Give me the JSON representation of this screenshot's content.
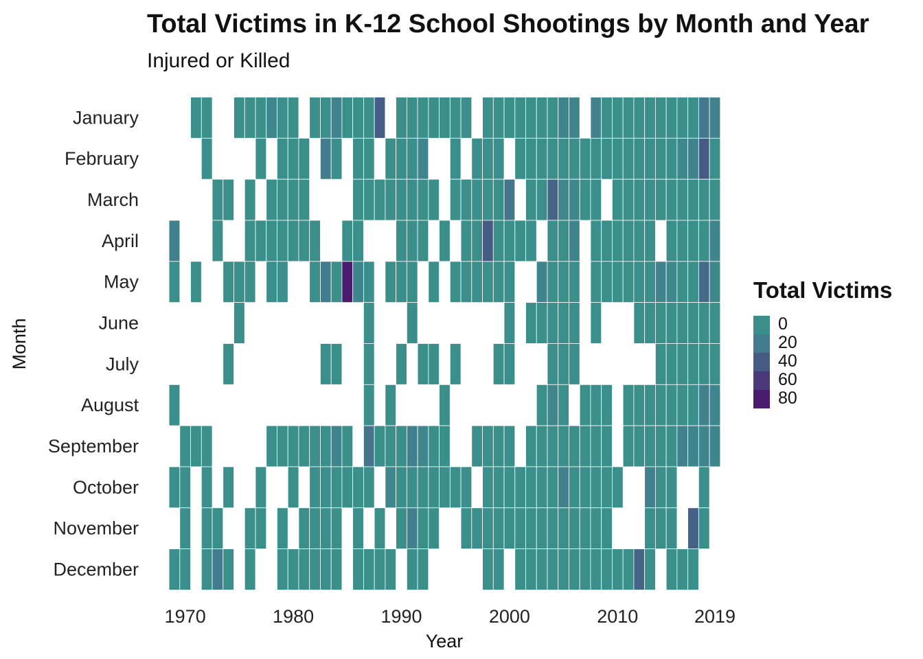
{
  "chart_data": {
    "type": "heatmap",
    "title": "Total Victims in K-12 School Shootings by Month and Year",
    "subtitle": "Injured or Killed",
    "xlabel": "Year",
    "ylabel": "Month",
    "x_ticks": [
      1970,
      1980,
      1990,
      2000,
      2010,
      2019
    ],
    "xlim": [
      1970,
      2019
    ],
    "grid": false,
    "months": [
      "January",
      "February",
      "March",
      "April",
      "May",
      "June",
      "July",
      "August",
      "September",
      "October",
      "November",
      "December"
    ],
    "legend": {
      "title": "Total Victims",
      "placement": "right",
      "labels": [
        "0",
        "20",
        "40",
        "60",
        "80"
      ],
      "colors": [
        "#3b8f8b",
        "#437b8e",
        "#465b84",
        "#4a3a7c",
        "#4b1b6e"
      ]
    },
    "base_color": "#3b8f8b",
    "cells": {
      "January": {
        "years": [
          1971,
          1972,
          1975,
          1976,
          1977,
          1978,
          1979,
          1980,
          1982,
          1983,
          1984,
          1985,
          1986,
          1987,
          1988,
          1990,
          1991,
          1992,
          1993,
          1994,
          1995,
          1996,
          1998,
          1999,
          2000,
          2001,
          2002,
          2003,
          2004,
          2005,
          2006,
          2008,
          2009,
          2010,
          2011,
          2012,
          2013,
          2014,
          2015,
          2016,
          2017,
          2018,
          2019
        ],
        "high": {
          "1978": 8,
          "1984": 12,
          "1988": 38,
          "2005": 10,
          "2006": 10,
          "2008": 14,
          "2018": 22,
          "2019": 14
        }
      },
      "February": {
        "years": [
          1972,
          1977,
          1979,
          1980,
          1981,
          1983,
          1984,
          1986,
          1987,
          1989,
          1990,
          1991,
          1992,
          1995,
          1997,
          1998,
          1999,
          2001,
          2002,
          2003,
          2004,
          2005,
          2006,
          2007,
          2008,
          2009,
          2010,
          2011,
          2012,
          2013,
          2014,
          2015,
          2016,
          2017,
          2018,
          2019
        ],
        "high": {
          "1983": 18,
          "1992": 10,
          "2016": 8,
          "2017": 12,
          "2018": 40
        }
      },
      "March": {
        "years": [
          1973,
          1974,
          1976,
          1978,
          1979,
          1980,
          1981,
          1986,
          1987,
          1988,
          1989,
          1990,
          1991,
          1992,
          1993,
          1995,
          1996,
          1997,
          1998,
          1999,
          2000,
          2002,
          2003,
          2004,
          2005,
          2006,
          2007,
          2008,
          2010,
          2011,
          2012,
          2013,
          2014,
          2015,
          2016,
          2017,
          2018,
          2019
        ],
        "high": {
          "2000": 24,
          "2004": 34,
          "2005": 8,
          "2006": 8
        }
      },
      "April": {
        "years": [
          1969,
          1973,
          1976,
          1977,
          1978,
          1979,
          1980,
          1981,
          1982,
          1985,
          1986,
          1990,
          1991,
          1992,
          1994,
          1996,
          1997,
          1998,
          1999,
          2000,
          2001,
          2002,
          2004,
          2005,
          2006,
          2008,
          2009,
          2010,
          2011,
          2012,
          2013,
          2015,
          2016,
          2017,
          2018,
          2019
        ],
        "high": {
          "1969": 14,
          "1998": 40,
          "2006": 10,
          "2019": 10
        }
      },
      "May": {
        "years": [
          1969,
          1971,
          1974,
          1975,
          1976,
          1978,
          1979,
          1982,
          1983,
          1984,
          1985,
          1986,
          1987,
          1989,
          1990,
          1991,
          1993,
          1995,
          1996,
          1997,
          1998,
          1999,
          2000,
          2003,
          2004,
          2005,
          2006,
          2008,
          2009,
          2010,
          2011,
          2012,
          2013,
          2014,
          2015,
          2016,
          2017,
          2018,
          2019
        ],
        "high": {
          "1983": 20,
          "1985": 86,
          "1986": 10,
          "2003": 10,
          "2014": 12,
          "2015": 8,
          "2018": 30,
          "2019": 8
        }
      },
      "June": {
        "years": [
          1975,
          1987,
          1991,
          2000,
          2002,
          2003,
          2004,
          2005,
          2006,
          2008,
          2012,
          2013,
          2014,
          2015,
          2016,
          2017,
          2018,
          2019
        ],
        "high": {}
      },
      "July": {
        "years": [
          1974,
          1983,
          1984,
          1987,
          1990,
          1992,
          1993,
          1995,
          1999,
          2000,
          2004,
          2005,
          2006,
          2014,
          2015,
          2016,
          2017,
          2018,
          2019
        ],
        "high": {}
      },
      "August": {
        "years": [
          1969,
          1987,
          1989,
          1994,
          2003,
          2004,
          2005,
          2007,
          2008,
          2009,
          2011,
          2012,
          2013,
          2014,
          2015,
          2016,
          2017,
          2018,
          2019
        ],
        "high": {
          "2004": 8,
          "2018": 14,
          "2019": 10
        }
      },
      "September": {
        "years": [
          1970,
          1971,
          1972,
          1978,
          1979,
          1980,
          1981,
          1982,
          1983,
          1984,
          1985,
          1987,
          1988,
          1989,
          1990,
          1991,
          1992,
          1993,
          1994,
          1997,
          1998,
          1999,
          2000,
          2002,
          2003,
          2004,
          2005,
          2006,
          2007,
          2008,
          2009,
          2011,
          2012,
          2013,
          2014,
          2015,
          2016,
          2017,
          2018,
          2019
        ],
        "high": {
          "1984": 10,
          "1987": 24,
          "1991": 14,
          "1992": 8,
          "2016": 14,
          "2017": 10,
          "2018": 10,
          "2019": 10
        }
      },
      "October": {
        "years": [
          1969,
          1970,
          1972,
          1974,
          1977,
          1980,
          1982,
          1983,
          1984,
          1985,
          1986,
          1987,
          1989,
          1990,
          1991,
          1992,
          1993,
          1994,
          1995,
          1996,
          1998,
          1999,
          2000,
          2001,
          2002,
          2003,
          2004,
          2005,
          2006,
          2007,
          2008,
          2009,
          2010,
          2013,
          2014,
          2015,
          2018
        ],
        "high": {
          "1989": 8,
          "2005": 14,
          "2013": 14
        }
      },
      "November": {
        "years": [
          1970,
          1972,
          1973,
          1976,
          1977,
          1979,
          1981,
          1982,
          1983,
          1984,
          1986,
          1988,
          1990,
          1991,
          1992,
          1993,
          1996,
          1997,
          1998,
          1999,
          2000,
          2001,
          2002,
          2003,
          2004,
          2005,
          2006,
          2007,
          2008,
          2009,
          2013,
          2014,
          2015,
          2017,
          2018
        ],
        "high": {
          "1991": 16,
          "2017": 36
        }
      },
      "December": {
        "years": [
          1969,
          1970,
          1972,
          1973,
          1974,
          1976,
          1979,
          1980,
          1981,
          1982,
          1983,
          1984,
          1986,
          1987,
          1988,
          1989,
          1991,
          1992,
          1998,
          1999,
          2001,
          2002,
          2003,
          2004,
          2005,
          2006,
          2007,
          2008,
          2009,
          2010,
          2011,
          2012,
          2013,
          2015,
          2016,
          2017
        ],
        "high": {
          "1973": 20,
          "2012": 34
        }
      }
    }
  }
}
